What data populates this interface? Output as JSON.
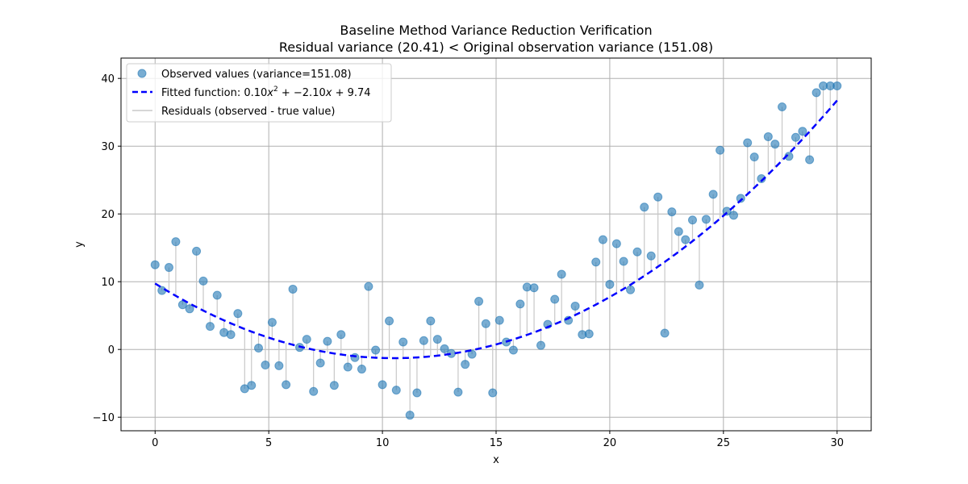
{
  "chart_data": {
    "type": "scatter",
    "title": "Baseline Method Variance Reduction Verification",
    "subtitle": "Residual variance (20.41) < Original observation variance (151.08)",
    "xlabel": "x",
    "ylabel": "y",
    "xlim": [
      -1.5,
      31.5
    ],
    "ylim": [
      -12,
      43
    ],
    "xticks": [
      0,
      5,
      10,
      15,
      20,
      25,
      30
    ],
    "yticks": [
      -10,
      0,
      10,
      20,
      30,
      40
    ],
    "xtick_labels": [
      "0",
      "5",
      "10",
      "15",
      "20",
      "25",
      "30"
    ],
    "ytick_labels": [
      "−10",
      "0",
      "10",
      "20",
      "30",
      "40"
    ],
    "grid": true,
    "legend_position": "top-left",
    "legend": {
      "observed_label": "Observed values (variance=151.08)",
      "fitted_label_prefix": "Fitted function: 0.10",
      "fitted_label_x": "x",
      "fitted_label_sup": "2",
      "fitted_label_mid": " + −2.10",
      "fitted_label_x2": "x",
      "fitted_label_suffix": " + 9.74",
      "residuals_label": "Residuals (observed - true value)"
    },
    "fit": {
      "a": 0.1,
      "b": -2.1,
      "c": 9.74
    },
    "colors": {
      "observed": "#1f77b4",
      "fitted": "#0000ff",
      "residuals": "#c8c8c8",
      "grid": "#b0b0b0"
    },
    "series": [
      {
        "name": "Observed values (variance=151.08)",
        "x": [
          0.0,
          0.3,
          0.61,
          0.91,
          1.21,
          1.52,
          1.82,
          2.12,
          2.42,
          2.73,
          3.03,
          3.33,
          3.64,
          3.94,
          4.24,
          4.55,
          4.85,
          5.15,
          5.45,
          5.76,
          6.06,
          6.36,
          6.67,
          6.97,
          7.27,
          7.58,
          7.88,
          8.18,
          8.48,
          8.79,
          9.09,
          9.39,
          9.7,
          10.0,
          10.3,
          10.61,
          10.91,
          11.21,
          11.52,
          11.82,
          12.12,
          12.42,
          12.73,
          13.03,
          13.33,
          13.64,
          13.94,
          14.24,
          14.55,
          14.85,
          15.15,
          15.45,
          15.76,
          16.06,
          16.36,
          16.67,
          16.97,
          17.27,
          17.58,
          17.88,
          18.18,
          18.48,
          18.79,
          19.09,
          19.39,
          19.7,
          20.0,
          20.3,
          20.61,
          20.91,
          21.21,
          21.52,
          21.82,
          22.12,
          22.42,
          22.73,
          23.03,
          23.33,
          23.64,
          23.94,
          24.24,
          24.55,
          24.85,
          25.15,
          25.45,
          25.76,
          26.06,
          26.36,
          26.67,
          26.97,
          27.27,
          27.58,
          27.88,
          28.18,
          28.48,
          28.79,
          29.09,
          29.39,
          29.7,
          30.0
        ],
        "values": [
          12.5,
          8.7,
          12.1,
          15.9,
          6.6,
          6.0,
          14.5,
          10.1,
          3.4,
          8.0,
          2.5,
          2.2,
          5.3,
          -5.8,
          -5.3,
          0.2,
          -2.3,
          4.0,
          -2.4,
          -5.2,
          8.9,
          0.3,
          1.5,
          -6.2,
          -2.0,
          1.2,
          -5.3,
          2.2,
          -2.6,
          -1.2,
          -2.9,
          9.3,
          -0.1,
          -5.2,
          4.2,
          -6.0,
          1.1,
          -9.7,
          -6.4,
          1.3,
          4.2,
          1.5,
          0.1,
          -0.6,
          -6.3,
          -2.2,
          -0.7,
          7.1,
          3.8,
          -6.4,
          4.3,
          1.1,
          -0.1,
          6.7,
          9.2,
          9.1,
          0.6,
          3.7,
          7.4,
          11.1,
          4.3,
          6.4,
          2.2,
          2.3,
          12.9,
          16.2,
          9.6,
          15.6,
          13.0,
          8.8,
          14.4,
          21.0,
          13.8,
          22.5,
          2.4,
          20.3,
          17.4,
          16.2,
          19.1,
          9.5,
          19.2,
          22.9,
          29.4,
          20.4,
          19.8,
          22.3,
          30.5,
          28.4,
          25.2,
          31.4,
          30.3,
          35.8,
          28.5,
          31.3,
          32.2,
          28.0,
          37.9,
          38.9,
          38.9,
          38.9
        ]
      },
      {
        "name": "Fitted function: 0.10x^2 + -2.10x + 9.74"
      }
    ]
  }
}
